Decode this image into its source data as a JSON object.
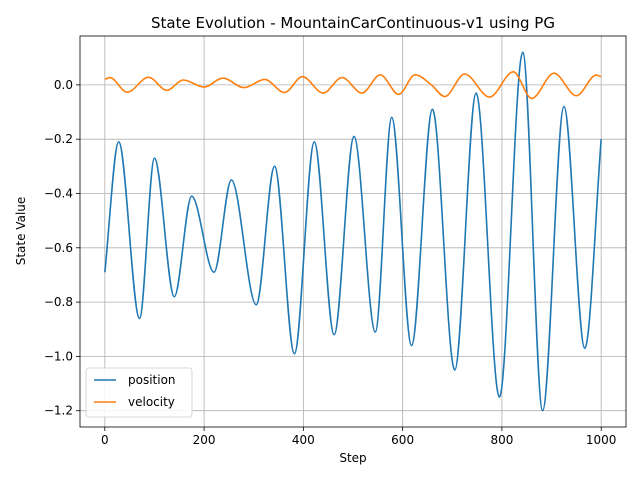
{
  "chart_data": {
    "type": "line",
    "title": "State Evolution - MountainCarContinuous-v1 using PG",
    "xlabel": "Step",
    "ylabel": "State Value",
    "xlim": [
      -50,
      1050
    ],
    "ylim": [
      -1.26,
      0.18
    ],
    "xticks": [
      0,
      200,
      400,
      600,
      800,
      1000
    ],
    "yticks": [
      -1.2,
      -1.0,
      -0.8,
      -0.6,
      -0.4,
      -0.2,
      0.0
    ],
    "xtick_labels": [
      "0",
      "200",
      "400",
      "600",
      "800",
      "1000"
    ],
    "ytick_labels": [
      "−1.2",
      "−1.0",
      "−0.8",
      "−0.6",
      "−0.4",
      "−0.2",
      "0.0"
    ],
    "grid": true,
    "legend_position": "lower-left",
    "series": [
      {
        "name": "position",
        "color": "#1f77b4",
        "x": [
          0,
          28,
          70,
          100,
          140,
          175,
          220,
          255,
          305,
          342,
          382,
          422,
          462,
          502,
          545,
          578,
          618,
          660,
          705,
          748,
          795,
          842,
          882,
          925,
          967,
          1000
        ],
        "y": [
          -0.69,
          -0.21,
          -0.86,
          -0.27,
          -0.78,
          -0.41,
          -0.69,
          -0.35,
          -0.81,
          -0.3,
          -0.99,
          -0.21,
          -0.92,
          -0.19,
          -0.91,
          -0.12,
          -0.96,
          -0.09,
          -1.05,
          -0.03,
          -1.15,
          0.12,
          -1.2,
          -0.08,
          -0.97,
          -0.2
        ]
      },
      {
        "name": "velocity",
        "color": "#ff7f0e",
        "x": [
          0,
          10,
          45,
          88,
          125,
          158,
          200,
          238,
          280,
          322,
          362,
          398,
          440,
          478,
          518,
          555,
          592,
          625,
          658,
          685,
          725,
          775,
          823,
          860,
          905,
          950,
          990,
          1000
        ],
        "y": [
          0.02,
          0.027,
          -0.027,
          0.028,
          -0.02,
          0.018,
          -0.008,
          0.025,
          -0.01,
          0.02,
          -0.028,
          0.03,
          -0.03,
          0.027,
          -0.03,
          0.037,
          -0.035,
          0.037,
          0.0,
          -0.043,
          0.04,
          -0.045,
          0.048,
          -0.05,
          0.043,
          -0.04,
          0.036,
          0.03
        ]
      }
    ]
  }
}
